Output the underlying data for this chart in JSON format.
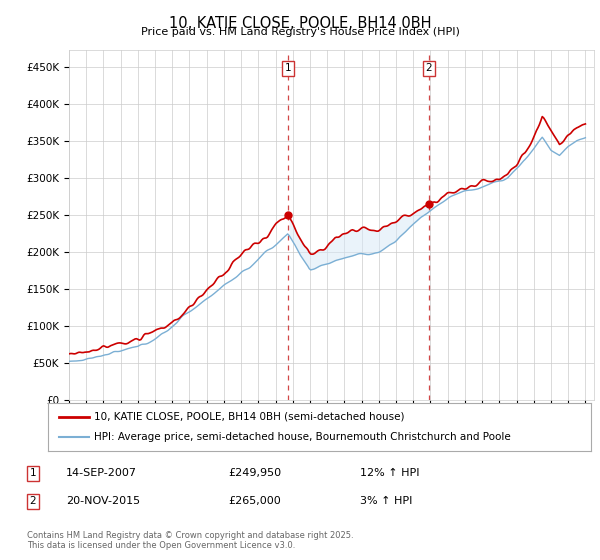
{
  "title": "10, KATIE CLOSE, POOLE, BH14 0BH",
  "subtitle": "Price paid vs. HM Land Registry's House Price Index (HPI)",
  "ylabel_ticks": [
    "£0",
    "£50K",
    "£100K",
    "£150K",
    "£200K",
    "£250K",
    "£300K",
    "£350K",
    "£400K",
    "£450K"
  ],
  "ytick_values": [
    0,
    50000,
    100000,
    150000,
    200000,
    250000,
    300000,
    350000,
    400000,
    450000
  ],
  "ylim": [
    0,
    472000
  ],
  "xlim_start": 1995.0,
  "xlim_end": 2025.5,
  "sale1_date_x": 2007.72,
  "sale1_price": 249950,
  "sale1_label": "1",
  "sale2_date_x": 2015.9,
  "sale2_price": 265000,
  "sale2_label": "2",
  "red_color": "#cc0000",
  "blue_color": "#7bafd4",
  "shade_color": "#d6e8f7",
  "grid_color": "#cccccc",
  "ann_box_color": "#cc3333",
  "footer_text": "Contains HM Land Registry data © Crown copyright and database right 2025.\nThis data is licensed under the Open Government Licence v3.0.",
  "legend1": "10, KATIE CLOSE, POOLE, BH14 0BH (semi-detached house)",
  "legend2": "HPI: Average price, semi-detached house, Bournemouth Christchurch and Poole",
  "ann1_date": "14-SEP-2007",
  "ann1_price": "£249,950",
  "ann1_hpi": "12% ↑ HPI",
  "ann2_date": "20-NOV-2015",
  "ann2_price": "£265,000",
  "ann2_hpi": "3% ↑ HPI"
}
